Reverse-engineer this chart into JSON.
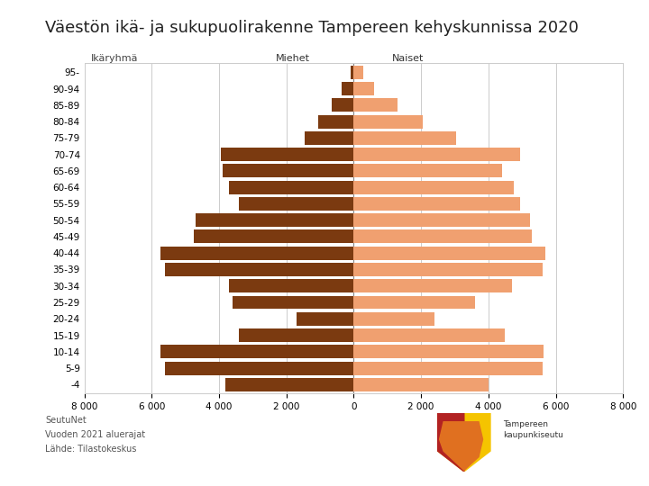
{
  "title": "Väestön ikä- ja sukupuolirakenne Tampereen kehyskunnissa 2020",
  "age_groups": [
    "-4",
    "5-9",
    "10-14",
    "15-19",
    "20-24",
    "25-29",
    "30-34",
    "35-39",
    "40-44",
    "45-49",
    "50-54",
    "55-59",
    "60-64",
    "65-69",
    "70-74",
    "75-79",
    "80-84",
    "85-89",
    "90-94",
    "95-"
  ],
  "males": [
    3800,
    5600,
    5750,
    3400,
    1700,
    3600,
    3700,
    5600,
    5750,
    4750,
    4700,
    3400,
    3700,
    3900,
    3950,
    1450,
    1050,
    650,
    350,
    100
  ],
  "females": [
    4000,
    5600,
    5650,
    4500,
    2400,
    3600,
    4700,
    5600,
    5700,
    5300,
    5250,
    4950,
    4750,
    4400,
    4950,
    3050,
    2050,
    1300,
    600,
    280
  ],
  "male_color": "#7B3A10",
  "female_color": "#F0A070",
  "xlim": 8000,
  "xticks": [
    -8000,
    -6000,
    -4000,
    -2000,
    0,
    2000,
    4000,
    6000,
    8000
  ],
  "xtick_labels": [
    "8 000",
    "6 000",
    "4 000",
    "2 000",
    "0",
    "2 000",
    "4 000",
    "6 000",
    "8 000"
  ],
  "label_males": "Miehet",
  "label_females": "Naiset",
  "label_age": "Ikäryhmä",
  "footer_line1": "SeutuNet",
  "footer_line2": "Vuoden 2021 aluerajat",
  "footer_line3": "Lähde: Tilastokeskus",
  "bg_color": "#FFFFFF",
  "grid_color": "#CCCCCC",
  "title_fontsize": 13,
  "axis_fontsize": 7.5,
  "ytick_fontsize": 7.5,
  "label_fontsize": 8,
  "bar_height": 0.82
}
